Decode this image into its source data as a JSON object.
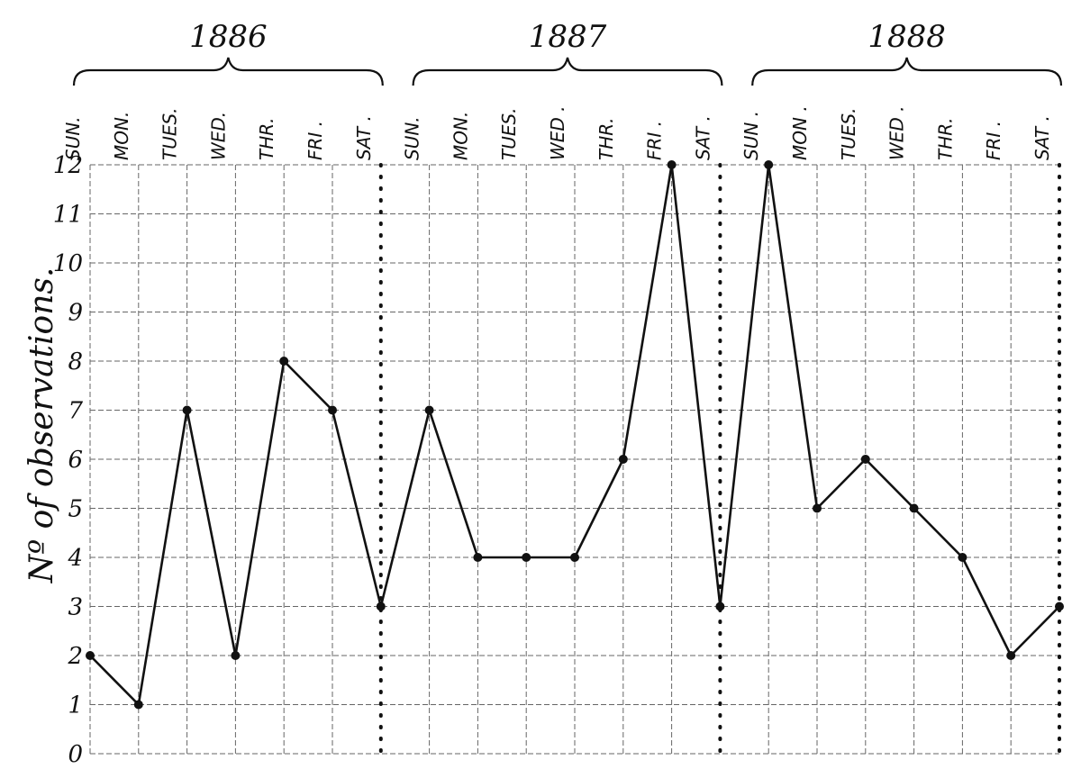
{
  "chart_data": {
    "type": "line",
    "ylabel": "Nº of observations.",
    "ylim": [
      0,
      12
    ],
    "yticks": [
      "0",
      "1",
      "2",
      "3",
      "4",
      "5",
      "6",
      "7",
      "8",
      "9",
      "10",
      "11",
      "12"
    ],
    "grid": true,
    "groups": [
      {
        "year": "1886",
        "days": [
          "SUN.",
          "MON.",
          "TUES.",
          "WED.",
          "THR.",
          "FRI .",
          "SAT ."
        ]
      },
      {
        "year": "1887",
        "days": [
          "SUN.",
          "MON.",
          "TUES.",
          "WED .",
          "THR.",
          "FRI .",
          "SAT ."
        ]
      },
      {
        "year": "1888",
        "days": [
          "SUN .",
          "MON .",
          "TUES.",
          "WED .",
          "THR.",
          "FRI .",
          "SAT ."
        ]
      }
    ],
    "series": [
      {
        "values": [
          2,
          1,
          7,
          2,
          8,
          7,
          3,
          7,
          4,
          4,
          4,
          6,
          12,
          3,
          12,
          5,
          6,
          5,
          4,
          2,
          3
        ]
      }
    ]
  }
}
